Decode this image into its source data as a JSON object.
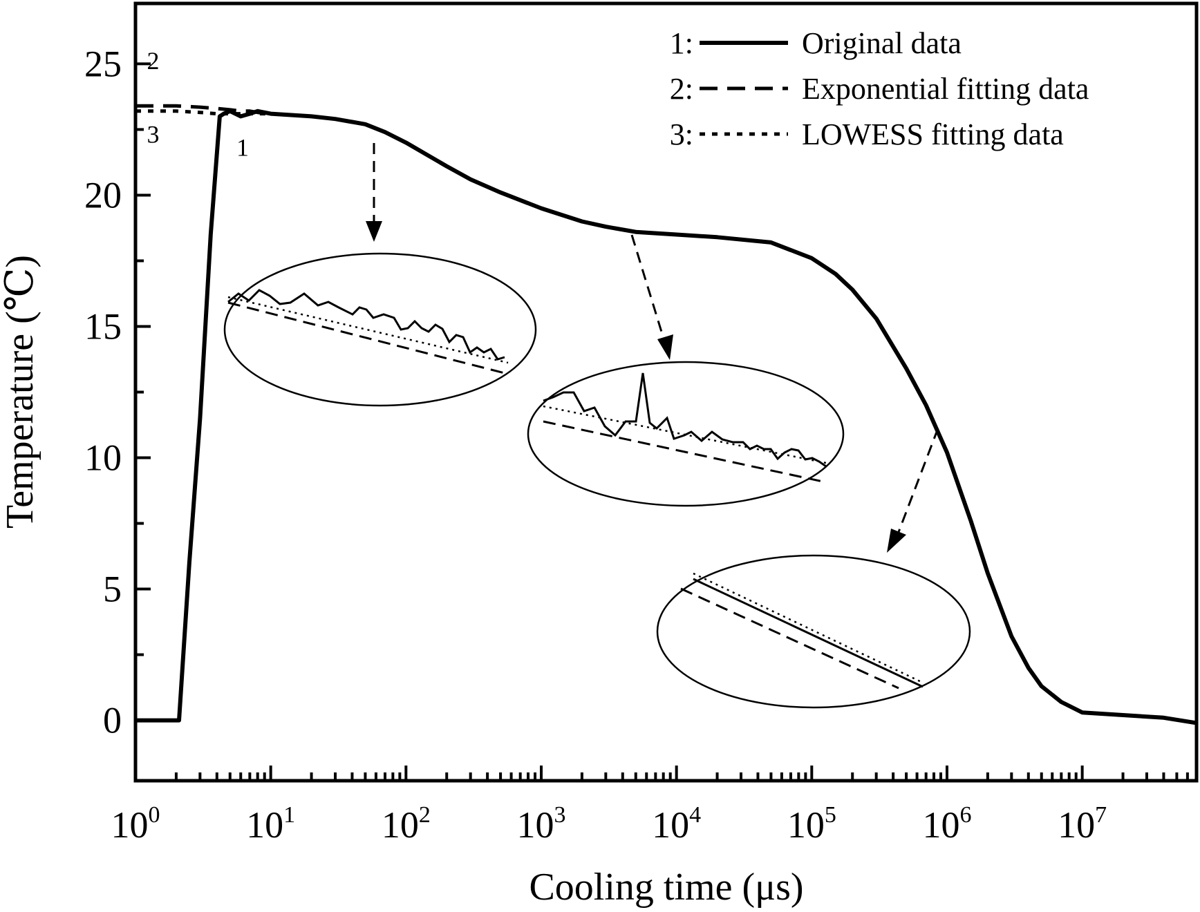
{
  "chart_data": {
    "type": "line",
    "xlabel": "Cooling time (μs)",
    "ylabel": "Temperature (℃)",
    "x_scale": "log",
    "xlim": [
      1,
      70000000
    ],
    "ylim": [
      -2.3,
      27.3
    ],
    "x_ticks": [
      {
        "value": 1,
        "base": "10",
        "exp": "0"
      },
      {
        "value": 10,
        "base": "10",
        "exp": "1"
      },
      {
        "value": 100,
        "base": "10",
        "exp": "2"
      },
      {
        "value": 1000,
        "base": "10",
        "exp": "3"
      },
      {
        "value": 10000,
        "base": "10",
        "exp": "4"
      },
      {
        "value": 100000,
        "base": "10",
        "exp": "5"
      },
      {
        "value": 1000000,
        "base": "10",
        "exp": "6"
      },
      {
        "value": 10000000,
        "base": "10",
        "exp": "7"
      }
    ],
    "y_ticks": [
      0,
      5,
      10,
      15,
      20,
      25
    ],
    "grid": false,
    "legend_position": "top-right",
    "series": [
      {
        "id": "1",
        "name": "Original data",
        "style": "solid",
        "x": [
          1,
          2.1,
          2.5,
          3.0,
          3.6,
          4.2,
          4.5,
          5,
          6,
          7,
          8,
          10,
          20,
          30,
          50,
          70,
          100,
          200,
          300,
          500,
          1000,
          2000,
          3000,
          5000,
          10000,
          20000,
          50000,
          100000,
          150000,
          200000,
          300000,
          500000,
          700000,
          1000000,
          1500000,
          2000000,
          3000000,
          4000000,
          5000000,
          7000000,
          10000000,
          20000000,
          40000000,
          70000000
        ],
        "y": [
          0,
          0,
          6.0,
          11.5,
          18.5,
          23.0,
          23.1,
          23.2,
          23.0,
          23.1,
          23.2,
          23.1,
          23.0,
          22.9,
          22.7,
          22.4,
          22.0,
          21.1,
          20.6,
          20.1,
          19.5,
          19.0,
          18.8,
          18.6,
          18.5,
          18.4,
          18.2,
          17.6,
          17.0,
          16.4,
          15.3,
          13.4,
          12.0,
          10.2,
          7.6,
          5.6,
          3.2,
          2.0,
          1.3,
          0.7,
          0.3,
          0.2,
          0.1,
          -0.1
        ]
      },
      {
        "id": "2",
        "name": "Exponential fitting data",
        "style": "dashed",
        "x": [
          1,
          2,
          3,
          4,
          5,
          6,
          7,
          8,
          10,
          20,
          30,
          50,
          70,
          100,
          200,
          300,
          500,
          1000,
          2000,
          3000,
          5000,
          10000,
          20000,
          50000,
          100000,
          150000,
          200000,
          300000,
          500000,
          700000,
          1000000,
          1500000,
          2000000,
          3000000,
          4000000,
          5000000,
          7000000,
          10000000,
          20000000,
          40000000,
          70000000
        ],
        "y": [
          23.4,
          23.4,
          23.35,
          23.3,
          23.25,
          23.2,
          23.2,
          23.15,
          23.1,
          23.0,
          22.9,
          22.7,
          22.4,
          22.0,
          21.1,
          20.6,
          20.1,
          19.5,
          19.0,
          18.8,
          18.6,
          18.5,
          18.4,
          18.2,
          17.6,
          17.0,
          16.4,
          15.3,
          13.4,
          12.0,
          10.2,
          7.6,
          5.6,
          3.2,
          2.0,
          1.3,
          0.7,
          0.3,
          0.2,
          0.1,
          -0.1
        ]
      },
      {
        "id": "3",
        "name": "LOWESS fitting data",
        "style": "dotted",
        "x": [
          1,
          2,
          3,
          4,
          5,
          6,
          7,
          8,
          10,
          20,
          30,
          50,
          70,
          100,
          200,
          300,
          500,
          1000,
          2000,
          3000,
          5000,
          10000,
          20000,
          50000,
          100000,
          150000,
          200000,
          300000,
          500000,
          700000,
          1000000,
          1500000,
          2000000,
          3000000,
          4000000,
          5000000,
          7000000,
          10000000,
          20000000,
          40000000,
          70000000
        ],
        "y": [
          23.2,
          23.2,
          23.15,
          23.1,
          23.1,
          23.1,
          23.1,
          23.1,
          23.1,
          23.0,
          22.9,
          22.7,
          22.4,
          22.0,
          21.1,
          20.6,
          20.1,
          19.5,
          19.0,
          18.8,
          18.6,
          18.5,
          18.4,
          18.2,
          17.6,
          17.0,
          16.4,
          15.3,
          13.4,
          12.0,
          10.2,
          7.6,
          5.6,
          3.2,
          2.0,
          1.3,
          0.7,
          0.3,
          0.2,
          0.1,
          -0.1
        ]
      }
    ],
    "legend": [
      {
        "index": "1:",
        "label": "Original data",
        "style": "solid"
      },
      {
        "index": "2:",
        "label": "Exponential fitting data",
        "style": "dashed"
      },
      {
        "index": "3:",
        "label": "LOWESS fitting data",
        "style": "dotted"
      }
    ],
    "curve_labels": [
      {
        "text": "2",
        "x": 1.35,
        "y": 24.8
      },
      {
        "text": "3",
        "x": 1.35,
        "y": 22.0
      },
      {
        "text": "1",
        "x": 6.2,
        "y": 21.5
      }
    ],
    "annotations": [
      {
        "type": "zoom-inset",
        "region": "early plateau (~60 μs)",
        "content": "noisy original data with exponential fit slightly below LOWESS fit"
      },
      {
        "type": "zoom-inset",
        "region": "mid plateau (~6000 μs)",
        "content": "original data with a single spike; fits run below"
      },
      {
        "type": "zoom-inset",
        "region": "steep decline (~1e6 μs)",
        "content": "original and LOWESS fit overlap; exponential fit slightly below"
      }
    ]
  }
}
